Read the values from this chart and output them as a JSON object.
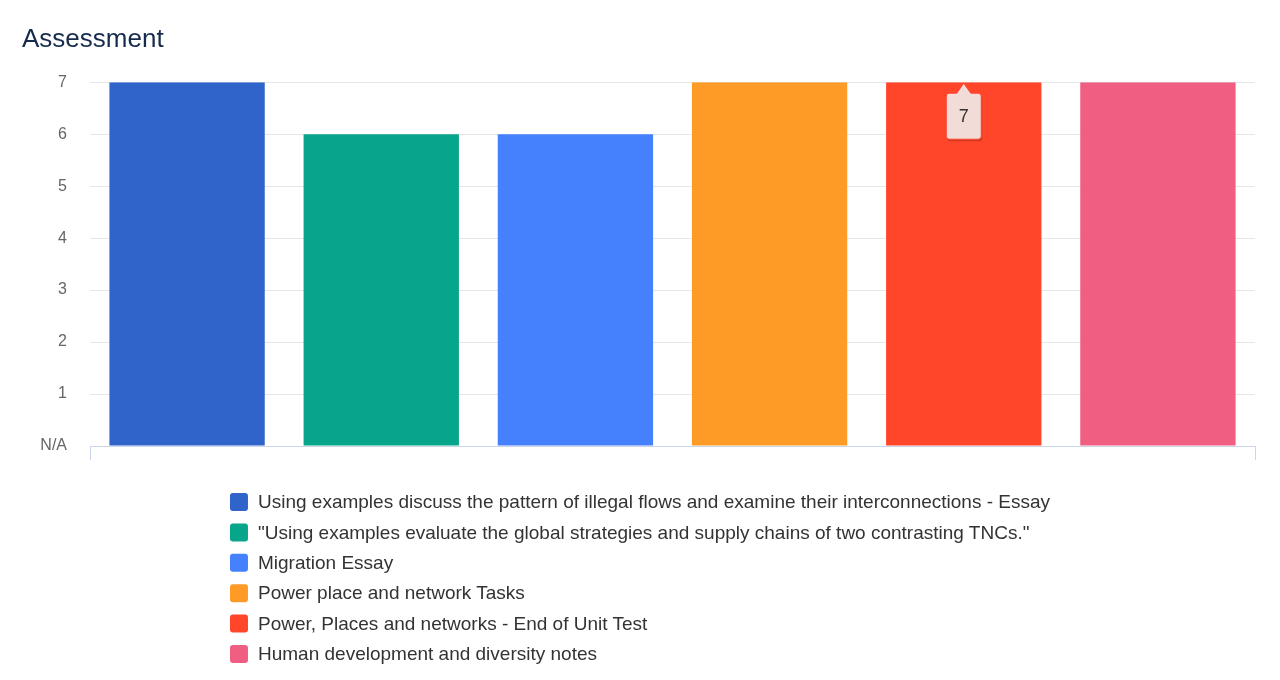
{
  "chart_data": {
    "type": "bar",
    "title": "Assessment",
    "categories": [
      null
    ],
    "series": [
      {
        "name": "Using examples discuss the pattern of illegal flows and examine their interconnections - Essay",
        "color": "#3064cb",
        "values": [
          7
        ]
      },
      {
        "name": "\"Using examples evaluate the global strategies and supply chains of two contrasting TNCs.\"",
        "color": "#07a58a",
        "values": [
          6
        ]
      },
      {
        "name": "Migration Essay",
        "color": "#4581fd",
        "values": [
          6
        ]
      },
      {
        "name": "Power place and network Tasks",
        "color": "#fe9b26",
        "values": [
          7
        ]
      },
      {
        "name": "Power, Places and networks - End of Unit Test",
        "color": "#ff452a",
        "values": [
          7
        ],
        "value_labels": [
          "7"
        ]
      },
      {
        "name": "Human development and diversity notes",
        "color": "#f05e82",
        "values": [
          7
        ]
      }
    ],
    "ylim": [
      0,
      7
    ],
    "yticks": [
      {
        "value": 0,
        "label": "N/A"
      },
      1,
      2,
      3,
      4,
      5,
      6,
      7
    ],
    "grid": "y",
    "legend": "bottom",
    "tick_labels": "y"
  }
}
